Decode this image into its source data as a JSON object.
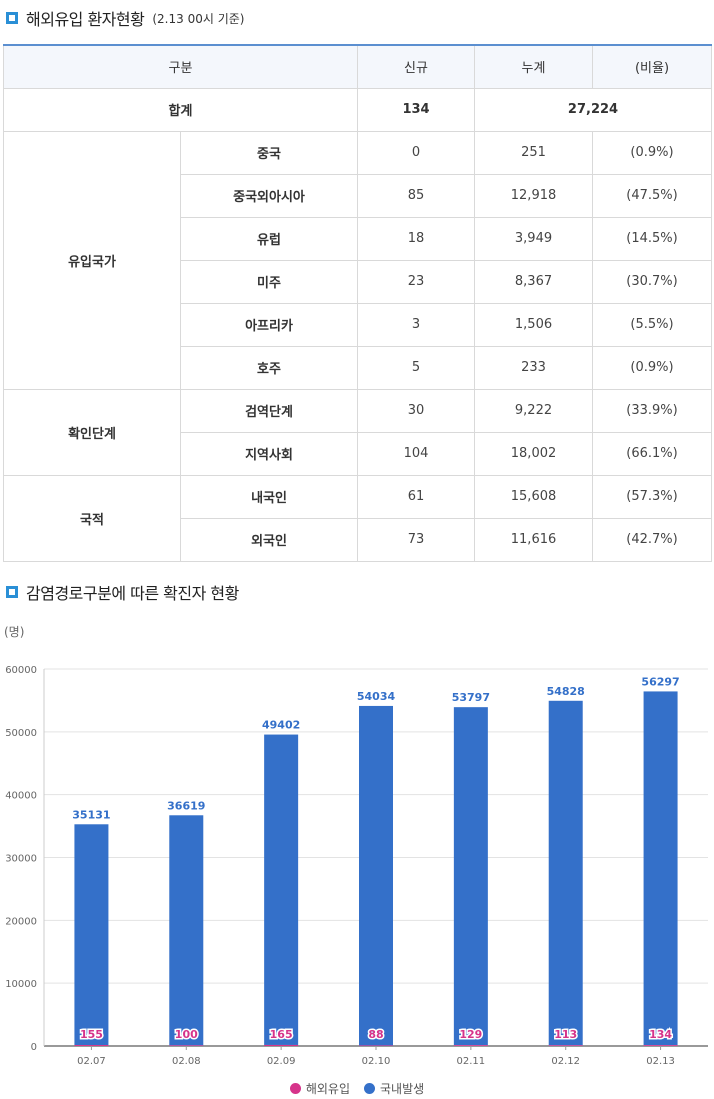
{
  "section1": {
    "title": "해외유입 환자현황",
    "subtitle": "(2.13 00시 기준)"
  },
  "table": {
    "headers": [
      "구분",
      "신규",
      "누계",
      "(비율)"
    ],
    "total": {
      "label": "합계",
      "new": "134",
      "cumulative": "27,224"
    },
    "groups": [
      {
        "label": "유입국가",
        "rows": [
          {
            "label": "중국",
            "new": "0",
            "cumulative": "251",
            "ratio": "(0.9%)"
          },
          {
            "label": "중국외아시아",
            "new": "85",
            "cumulative": "12,918",
            "ratio": "(47.5%)"
          },
          {
            "label": "유럽",
            "new": "18",
            "cumulative": "3,949",
            "ratio": "(14.5%)"
          },
          {
            "label": "미주",
            "new": "23",
            "cumulative": "8,367",
            "ratio": "(30.7%)"
          },
          {
            "label": "아프리카",
            "new": "3",
            "cumulative": "1,506",
            "ratio": "(5.5%)"
          },
          {
            "label": "호주",
            "new": "5",
            "cumulative": "233",
            "ratio": "(0.9%)"
          }
        ]
      },
      {
        "label": "확인단계",
        "rows": [
          {
            "label": "검역단계",
            "new": "30",
            "cumulative": "9,222",
            "ratio": "(33.9%)"
          },
          {
            "label": "지역사회",
            "new": "104",
            "cumulative": "18,002",
            "ratio": "(66.1%)"
          }
        ]
      },
      {
        "label": "국적",
        "rows": [
          {
            "label": "내국인",
            "new": "61",
            "cumulative": "15,608",
            "ratio": "(57.3%)"
          },
          {
            "label": "외국인",
            "new": "73",
            "cumulative": "11,616",
            "ratio": "(42.7%)"
          }
        ]
      }
    ]
  },
  "section2": {
    "title": "감염경로구분에 따른 확진자 현황"
  },
  "chart_data": {
    "type": "bar",
    "stacked": true,
    "categories": [
      "02.07",
      "02.08",
      "02.09",
      "02.10",
      "02.11",
      "02.12",
      "02.13"
    ],
    "series": [
      {
        "name": "해외유입",
        "color": "#d6338a",
        "values": [
          155,
          100,
          165,
          88,
          129,
          113,
          134
        ]
      },
      {
        "name": "국내발생",
        "color": "#3470c9",
        "values": [
          35131,
          36619,
          49402,
          54034,
          53797,
          54828,
          56297
        ]
      }
    ],
    "ylabel": "(명)",
    "ylim": [
      0,
      60000
    ],
    "yticks": [
      0,
      10000,
      20000,
      30000,
      40000,
      50000,
      60000
    ],
    "grid": true,
    "legend": "bottom-center"
  }
}
